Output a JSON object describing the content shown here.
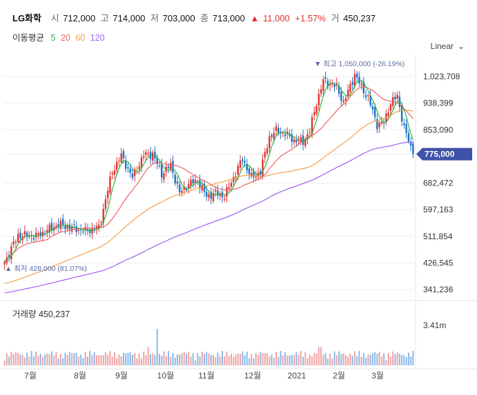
{
  "header": {
    "name": "LG화학",
    "open_label": "시",
    "open": "712,000",
    "high_label": "고",
    "high": "714,000",
    "low_label": "저",
    "low": "703,000",
    "close_label": "종",
    "close": "713,000",
    "change_arrow": "▲",
    "change": "11,000",
    "change_pct": "+1.57%",
    "volume_label": "거",
    "volume": "450,237"
  },
  "moving_avg": {
    "title": "이동평균",
    "items": [
      {
        "label": "5",
        "color": "#2fb344"
      },
      {
        "label": "20",
        "color": "#ef6262"
      },
      {
        "label": "60",
        "color": "#f5a14a"
      },
      {
        "label": "120",
        "color": "#a05ef5"
      }
    ]
  },
  "scale_label": "Linear",
  "chart_data": {
    "type": "candlestick",
    "title": "LG화학",
    "price_axis": {
      "ticks": [
        341236,
        426545,
        511854,
        597163,
        682472,
        775000,
        853090,
        938399,
        1023708
      ],
      "tick_labels": [
        "341,236",
        "426,545",
        "511,854",
        "597,163",
        "682,472",
        "775,000",
        "853,090",
        "938,399",
        "1,023,708"
      ],
      "range": [
        320000,
        1080000
      ]
    },
    "current_price": 775000,
    "current_price_label": "775,000",
    "annotations": {
      "high": {
        "text": "▼ 최고 1,050,000 (-26.19%)",
        "value": 1050000,
        "date": "2021-01-14"
      },
      "low": {
        "text": "▲ 최저 428,000 (81.07%)",
        "value": 428000,
        "date": "2020-06-26"
      }
    },
    "x_labels": [
      "7월",
      "8월",
      "9월",
      "10월",
      "11월",
      "12월",
      "2021",
      "2월",
      "3월"
    ],
    "volume_panel": {
      "title": "거래량",
      "value": "450,237",
      "max_label": "3.41m",
      "max": 3410000
    },
    "anchors": [
      {
        "i": 0,
        "p": 430000
      },
      {
        "i": 6,
        "p": 515000
      },
      {
        "i": 14,
        "p": 512000
      },
      {
        "i": 24,
        "p": 550000
      },
      {
        "i": 36,
        "p": 528000
      },
      {
        "i": 42,
        "p": 540000
      },
      {
        "i": 48,
        "p": 720000
      },
      {
        "i": 52,
        "p": 770000
      },
      {
        "i": 57,
        "p": 700000
      },
      {
        "i": 62,
        "p": 772000
      },
      {
        "i": 66,
        "p": 775000
      },
      {
        "i": 70,
        "p": 712000
      },
      {
        "i": 74,
        "p": 740000
      },
      {
        "i": 78,
        "p": 650000
      },
      {
        "i": 82,
        "p": 680000
      },
      {
        "i": 86,
        "p": 690000
      },
      {
        "i": 90,
        "p": 640000
      },
      {
        "i": 94,
        "p": 650000
      },
      {
        "i": 98,
        "p": 640000
      },
      {
        "i": 102,
        "p": 700000
      },
      {
        "i": 106,
        "p": 760000
      },
      {
        "i": 110,
        "p": 700000
      },
      {
        "i": 114,
        "p": 720000
      },
      {
        "i": 118,
        "p": 830000
      },
      {
        "i": 121,
        "p": 850000
      },
      {
        "i": 125,
        "p": 840000
      },
      {
        "i": 129,
        "p": 820000
      },
      {
        "i": 133,
        "p": 815000
      },
      {
        "i": 136,
        "p": 850000
      },
      {
        "i": 139,
        "p": 940000
      },
      {
        "i": 142,
        "p": 1010000
      },
      {
        "i": 145,
        "p": 1000000
      },
      {
        "i": 148,
        "p": 990000
      },
      {
        "i": 151,
        "p": 940000
      },
      {
        "i": 153,
        "p": 975000
      },
      {
        "i": 156,
        "p": 1030000
      },
      {
        "i": 159,
        "p": 990000
      },
      {
        "i": 162,
        "p": 955000
      },
      {
        "i": 166,
        "p": 870000
      },
      {
        "i": 169,
        "p": 875000
      },
      {
        "i": 172,
        "p": 940000
      },
      {
        "i": 175,
        "p": 960000
      },
      {
        "i": 178,
        "p": 860000
      },
      {
        "i": 182,
        "p": 775000
      }
    ]
  }
}
